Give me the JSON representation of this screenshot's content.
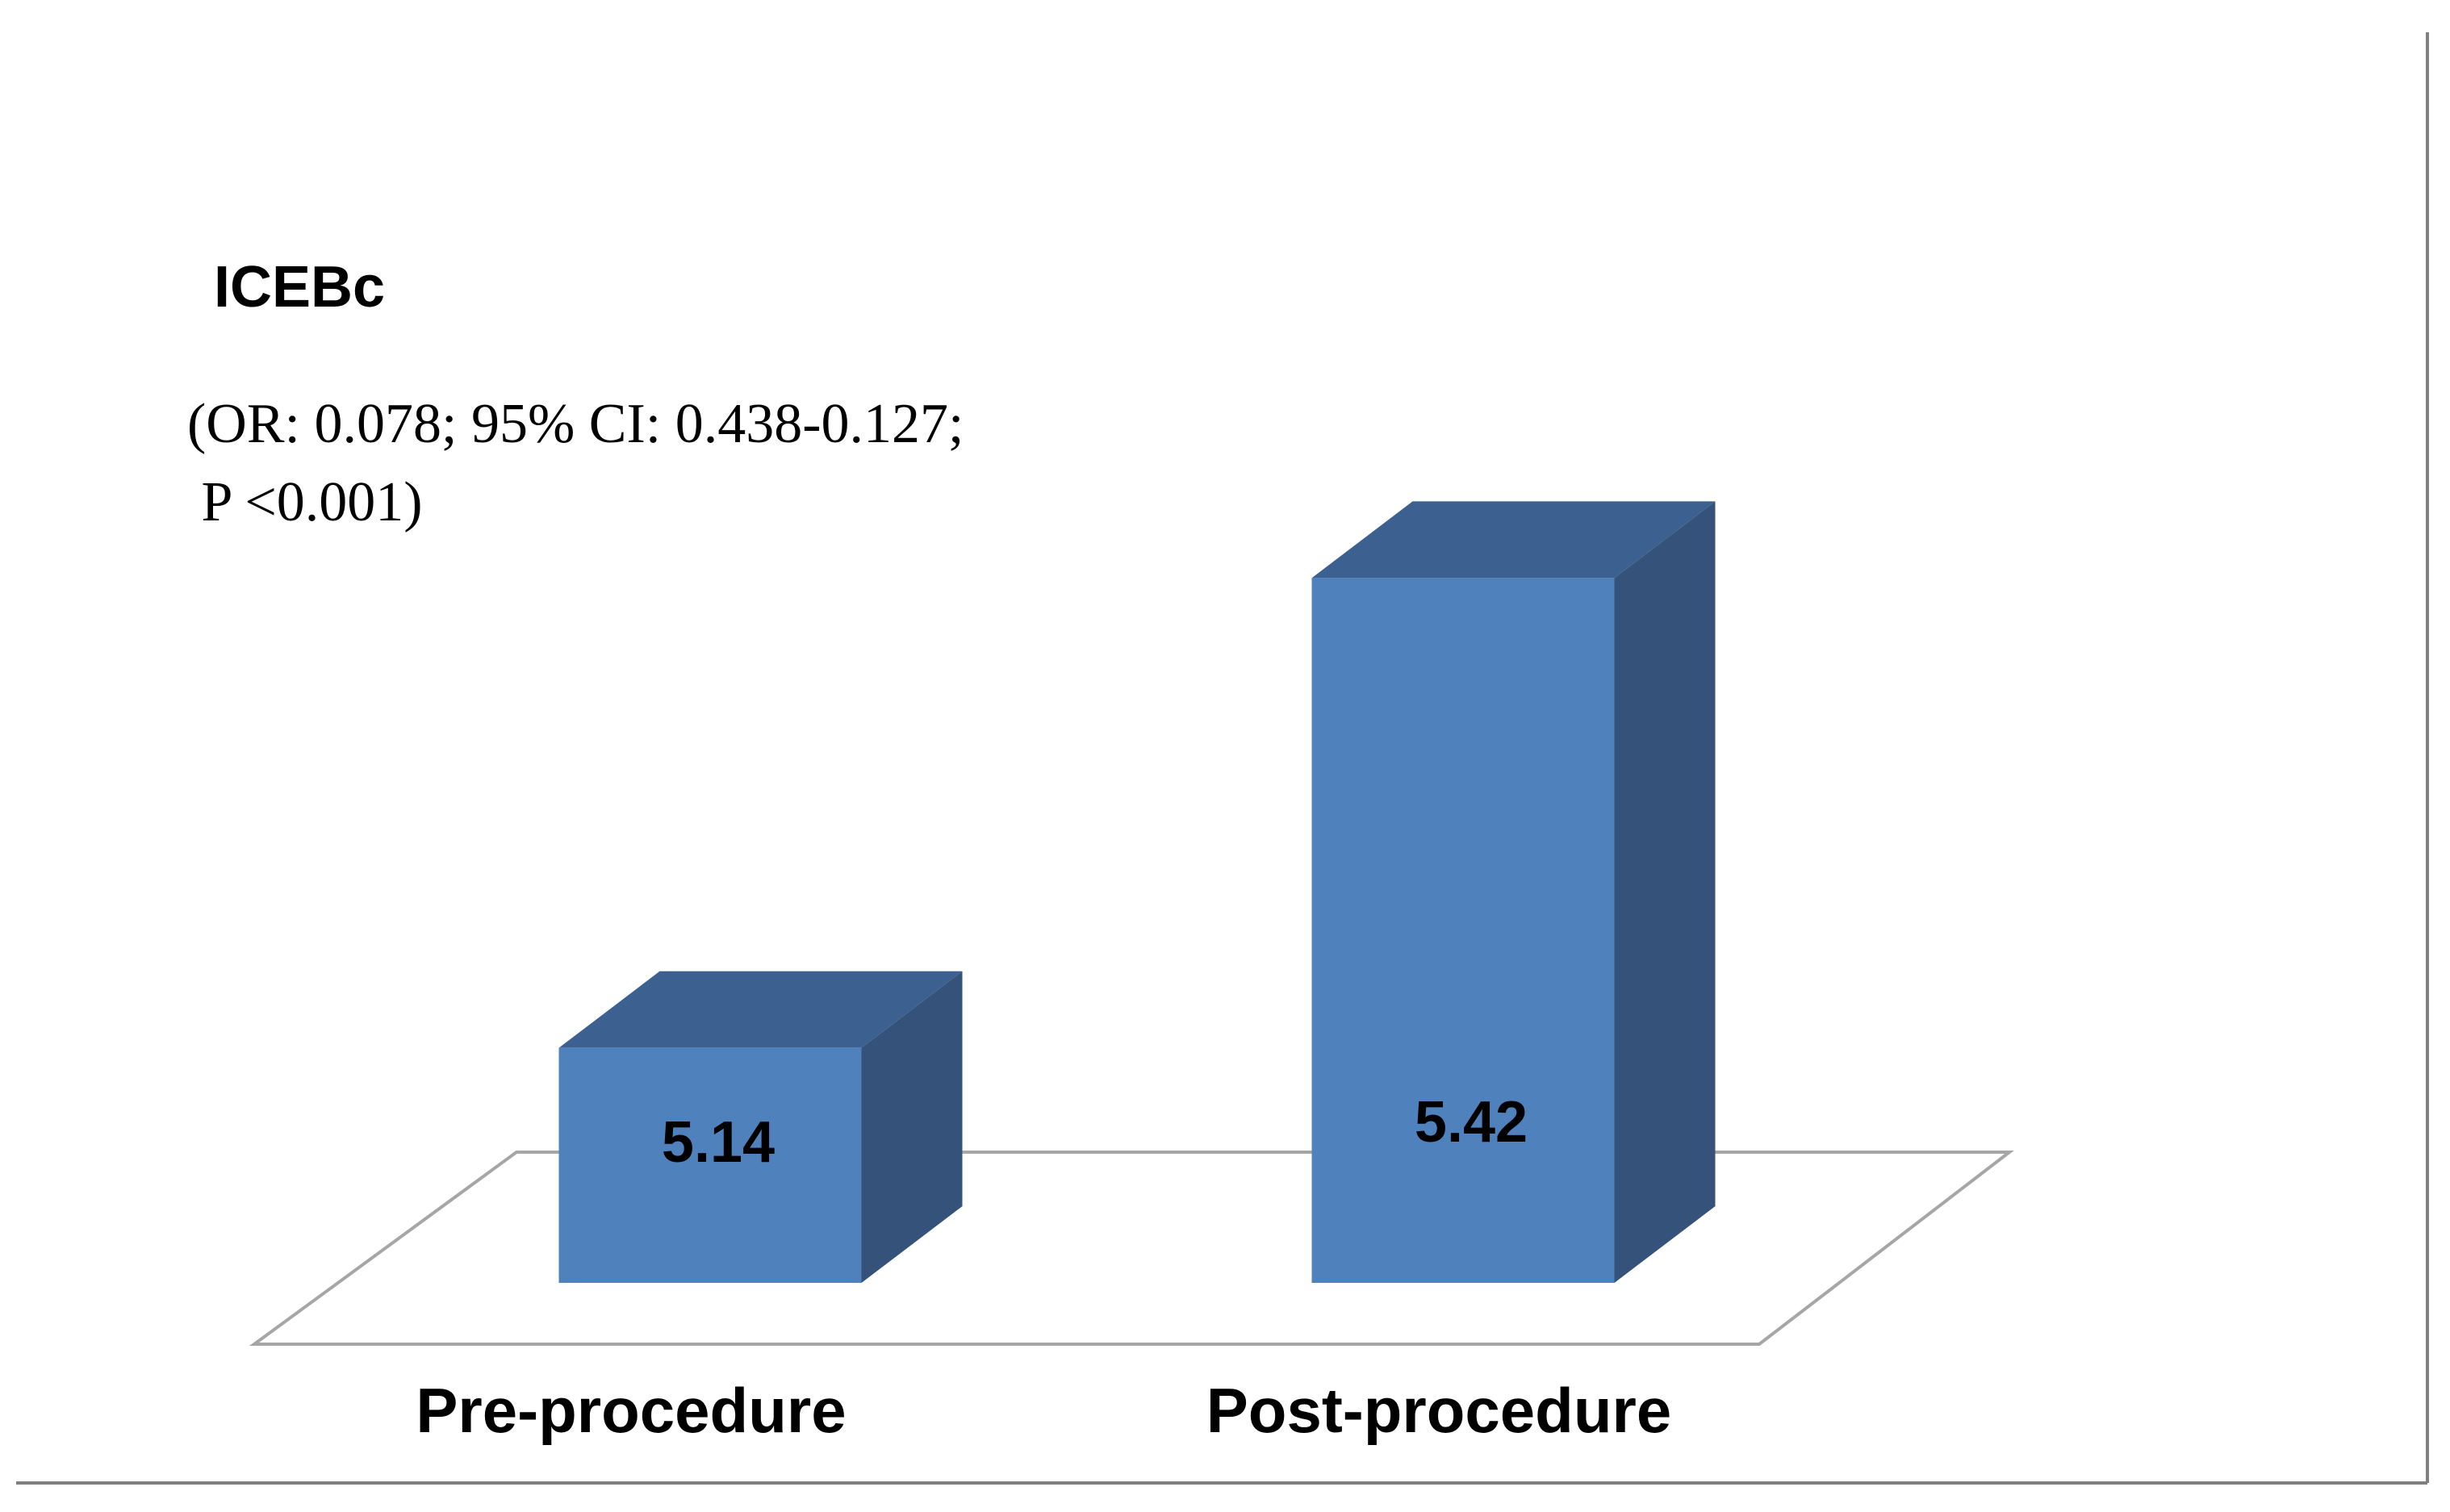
{
  "chart_data": {
    "type": "bar",
    "title": "ICEBc",
    "annotation_lines": [
      "(OR: 0.078; 95% CI: 0.438-0.127;",
      " P <0.001)"
    ],
    "categories": [
      "Pre-procedure",
      "Post-procedure"
    ],
    "values": [
      5.14,
      5.42
    ],
    "data_labels": [
      "5.14",
      "5.42"
    ],
    "ylim": [
      5.0,
      5.5
    ],
    "grid": false,
    "legend": "none",
    "style": "3d-column",
    "colors": {
      "front": "#4F81BD",
      "top": "#3C6190",
      "side": "#34527A",
      "floor_stroke": "#A6A6A6",
      "border": "#7F7F7F"
    }
  }
}
